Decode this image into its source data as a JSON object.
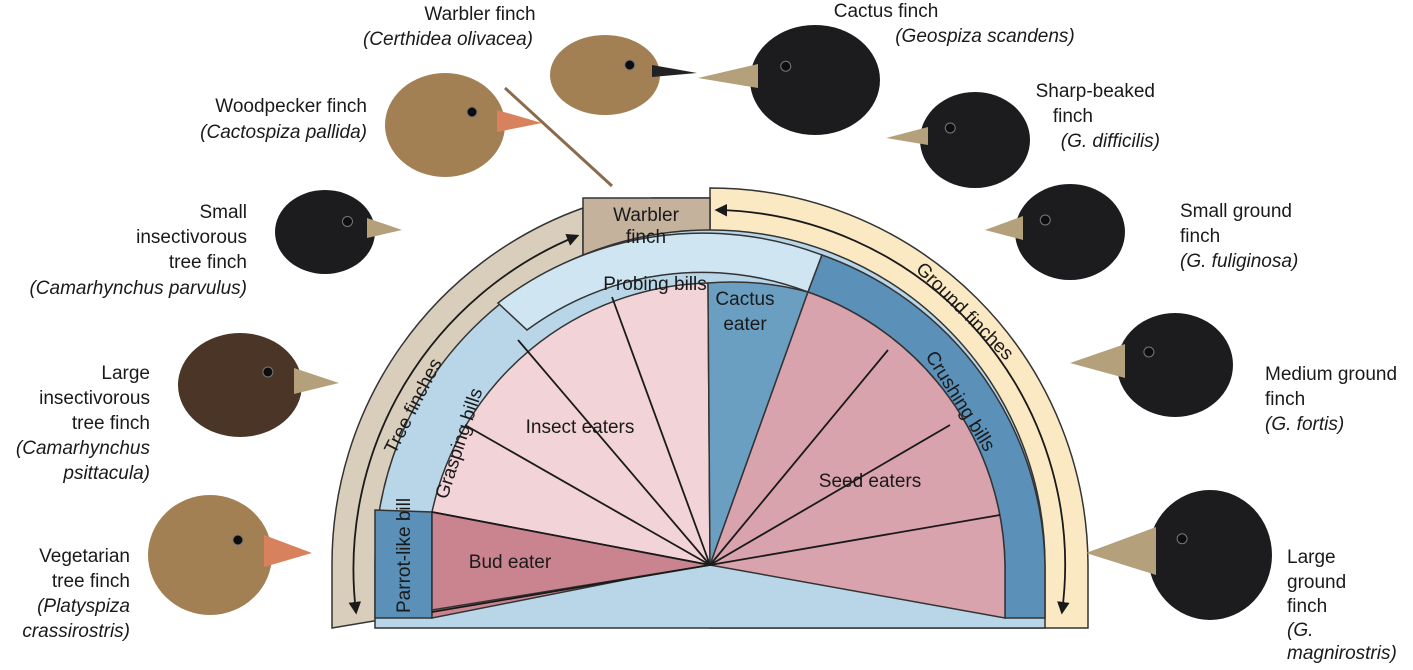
{
  "species": [
    {
      "key": "warbler",
      "name": "Warbler finch",
      "sci": "(Certhidea olivacea)"
    },
    {
      "key": "woodpecker",
      "name": "Woodpecker finch",
      "sci": "(Cactospiza pallida)"
    },
    {
      "key": "small-insectivorous",
      "name_lines": [
        "Small",
        "insectivorous",
        "tree finch"
      ],
      "sci": "(Camarhynchus parvulus)"
    },
    {
      "key": "large-insectivorous",
      "name_lines": [
        "Large",
        "insectivorous",
        "tree finch"
      ],
      "sci_lines": [
        "(Camarhynchus",
        "psittacula)"
      ]
    },
    {
      "key": "vegetarian",
      "name_lines": [
        "Vegetarian",
        "tree finch"
      ],
      "sci_lines": [
        "(Platyspiza",
        "crassirostris)"
      ]
    },
    {
      "key": "cactus",
      "name": "Cactus finch",
      "sci": "(Geospiza scandens)"
    },
    {
      "key": "sharp-beaked",
      "name_lines": [
        "Sharp-beaked",
        "finch"
      ],
      "sci": "(G. difficilis)"
    },
    {
      "key": "small-ground",
      "name_lines": [
        "Small ground",
        "finch"
      ],
      "sci": "(G. fuliginosa)"
    },
    {
      "key": "medium-ground",
      "name_lines": [
        "Medium ground",
        "finch"
      ],
      "sci": "(G. fortis)"
    },
    {
      "key": "large-ground",
      "name_lines": [
        "Large",
        "ground",
        "finch"
      ],
      "sci_lines": [
        "(G.",
        "magnirostris)"
      ]
    }
  ],
  "diagram": {
    "outer_left": "Tree finches",
    "outer_right": "Ground finches",
    "top_box_lines": [
      "Warbler",
      "finch"
    ],
    "bill_probing": "Probing bills",
    "bill_grasping": "Grasping bills",
    "bill_parrot": "Parrot-like bill",
    "bill_crushing": "Crushing bills",
    "cactus_lines": [
      "Cactus",
      "eater"
    ],
    "diet_insect": "Insect eaters",
    "diet_seed": "Seed eaters",
    "diet_bud": "Bud eater"
  },
  "colors": {
    "tree_band": "#d9cdbb",
    "ground_band": "#fbe9c4",
    "bill_band": "#b9d6e8",
    "probing_band": "#cfe5f1",
    "cactus": "#6a9fc2",
    "crushing": "#5b90b8",
    "insect": "#f2d4d8",
    "seed": "#d9a3ae",
    "bud": "#c98490",
    "warbler_box": "#c4b29c",
    "bird_black": "#1c1c1e",
    "bird_brown": "#4a3526",
    "bird_tan": "#a38054",
    "beak_tan": "#b4a07a",
    "beak_orange": "#d7825c"
  }
}
